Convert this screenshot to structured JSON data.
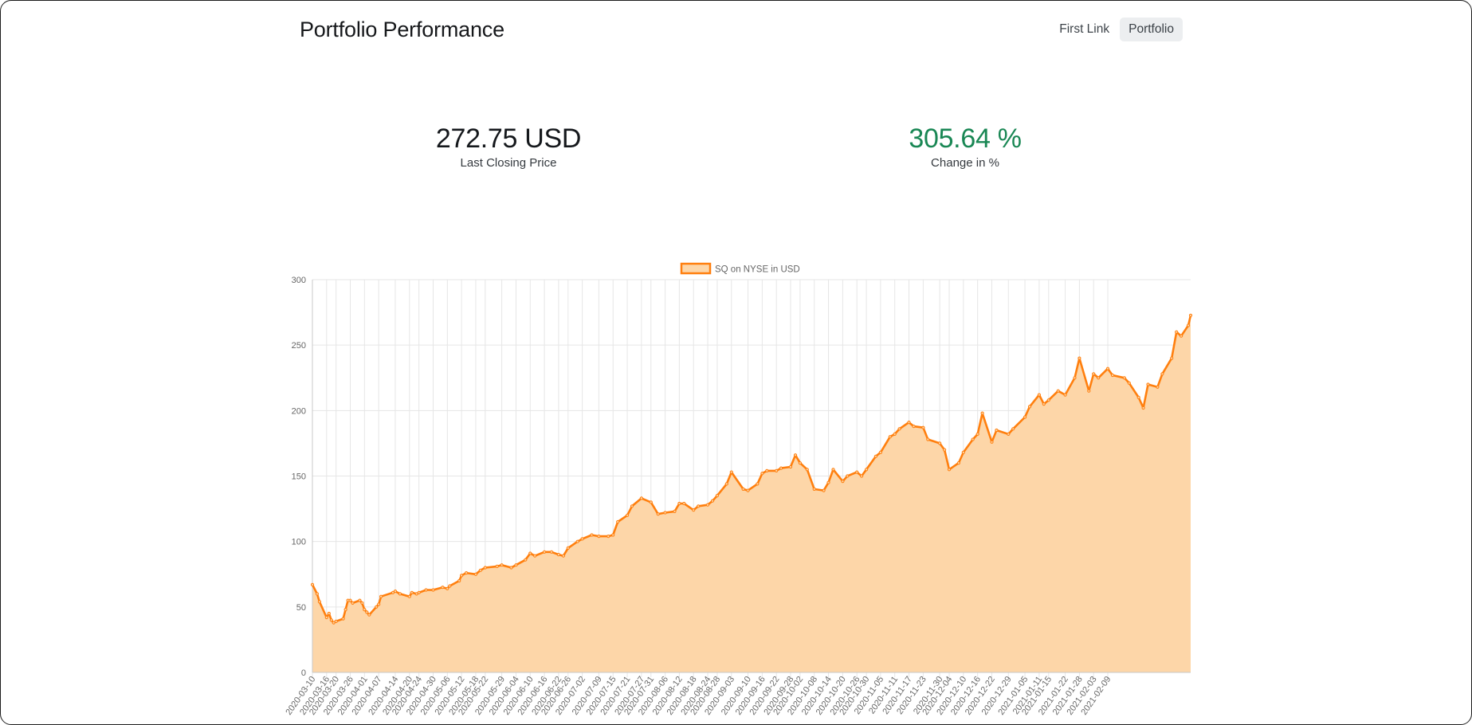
{
  "navbar": {
    "brand": "Portfolio Performance",
    "links": [
      {
        "label": "First Link",
        "active": false
      },
      {
        "label": "Portfolio",
        "active": true
      }
    ]
  },
  "stats": {
    "price": {
      "value": "272.75 USD",
      "label": "Last Closing Price"
    },
    "change": {
      "value": "305.64 %",
      "label": "Change in %",
      "color": "#198754"
    }
  },
  "chart_data": {
    "type": "area",
    "legend": "top",
    "grid": true,
    "series": [
      {
        "name": "SQ on NYSE in USD",
        "line_color": "#ff7f0e",
        "fill_color": "#fdd6a8"
      }
    ],
    "ylim": [
      0,
      300
    ],
    "yticks": [
      0,
      50,
      100,
      150,
      200,
      250,
      300
    ],
    "x_tick_labels": [
      "2020-03-10",
      "2020-03-16",
      "2020-03-20",
      "2020-03-26",
      "2020-04-01",
      "2020-04-07",
      "2020-04-14",
      "2020-04-20",
      "2020-04-24",
      "2020-04-30",
      "2020-05-06",
      "2020-05-12",
      "2020-05-18",
      "2020-05-22",
      "2020-05-29",
      "2020-06-04",
      "2020-06-10",
      "2020-06-16",
      "2020-06-22",
      "2020-06-26",
      "2020-07-02",
      "2020-07-09",
      "2020-07-15",
      "2020-07-21",
      "2020-07-27",
      "2020-07-31",
      "2020-08-06",
      "2020-08-12",
      "2020-08-18",
      "2020-08-24",
      "2020-08-28",
      "2020-09-03",
      "2020-09-10",
      "2020-09-16",
      "2020-09-22",
      "2020-09-28",
      "2020-10-02",
      "2020-10-08",
      "2020-10-14",
      "2020-10-20",
      "2020-10-26",
      "2020-10-30",
      "2020-11-05",
      "2020-11-11",
      "2020-11-17",
      "2020-11-23",
      "2020-11-30",
      "2020-12-04",
      "2020-12-10",
      "2020-12-16",
      "2020-12-22",
      "2020-12-29",
      "2021-01-05",
      "2021-01-11",
      "2021-01-15",
      "2021-01-22",
      "2021-01-28",
      "2021-02-03",
      "2021-02-09"
    ],
    "points": [
      [
        "2020-03-10",
        67
      ],
      [
        "2020-03-12",
        60
      ],
      [
        "2020-03-13",
        54
      ],
      [
        "2020-03-16",
        42
      ],
      [
        "2020-03-17",
        45
      ],
      [
        "2020-03-18",
        40
      ],
      [
        "2020-03-19",
        38
      ],
      [
        "2020-03-20",
        39
      ],
      [
        "2020-03-23",
        41
      ],
      [
        "2020-03-24",
        48
      ],
      [
        "2020-03-25",
        55
      ],
      [
        "2020-03-26",
        55
      ],
      [
        "2020-03-27",
        53
      ],
      [
        "2020-03-30",
        55
      ],
      [
        "2020-03-31",
        53
      ],
      [
        "2020-04-01",
        48
      ],
      [
        "2020-04-02",
        46
      ],
      [
        "2020-04-03",
        44
      ],
      [
        "2020-04-06",
        50
      ],
      [
        "2020-04-07",
        52
      ],
      [
        "2020-04-08",
        58
      ],
      [
        "2020-04-13",
        61
      ],
      [
        "2020-04-14",
        62
      ],
      [
        "2020-04-16",
        60
      ],
      [
        "2020-04-20",
        58
      ],
      [
        "2020-04-21",
        61
      ],
      [
        "2020-04-23",
        60
      ],
      [
        "2020-04-24",
        61
      ],
      [
        "2020-04-27",
        63
      ],
      [
        "2020-04-30",
        63
      ],
      [
        "2020-05-04",
        65
      ],
      [
        "2020-05-06",
        64
      ],
      [
        "2020-05-07",
        66
      ],
      [
        "2020-05-11",
        70
      ],
      [
        "2020-05-12",
        74
      ],
      [
        "2020-05-14",
        76
      ],
      [
        "2020-05-18",
        75
      ],
      [
        "2020-05-20",
        78
      ],
      [
        "2020-05-22",
        80
      ],
      [
        "2020-05-27",
        81
      ],
      [
        "2020-05-29",
        82
      ],
      [
        "2020-06-02",
        80
      ],
      [
        "2020-06-04",
        82
      ],
      [
        "2020-06-08",
        86
      ],
      [
        "2020-06-10",
        91
      ],
      [
        "2020-06-12",
        89
      ],
      [
        "2020-06-16",
        92
      ],
      [
        "2020-06-19",
        92
      ],
      [
        "2020-06-22",
        90
      ],
      [
        "2020-06-24",
        89
      ],
      [
        "2020-06-26",
        95
      ],
      [
        "2020-06-30",
        100
      ],
      [
        "2020-07-02",
        102
      ],
      [
        "2020-07-06",
        105
      ],
      [
        "2020-07-09",
        104
      ],
      [
        "2020-07-13",
        104
      ],
      [
        "2020-07-15",
        105
      ],
      [
        "2020-07-17",
        115
      ],
      [
        "2020-07-21",
        120
      ],
      [
        "2020-07-23",
        127
      ],
      [
        "2020-07-27",
        133
      ],
      [
        "2020-07-31",
        130
      ],
      [
        "2020-08-03",
        121
      ],
      [
        "2020-08-06",
        122
      ],
      [
        "2020-08-10",
        123
      ],
      [
        "2020-08-12",
        129
      ],
      [
        "2020-08-14",
        129
      ],
      [
        "2020-08-18",
        124
      ],
      [
        "2020-08-20",
        127
      ],
      [
        "2020-08-24",
        128
      ],
      [
        "2020-08-26",
        131
      ],
      [
        "2020-08-28",
        135
      ],
      [
        "2020-09-01",
        144
      ],
      [
        "2020-09-03",
        153
      ],
      [
        "2020-09-08",
        140
      ],
      [
        "2020-09-10",
        139
      ],
      [
        "2020-09-14",
        144
      ],
      [
        "2020-09-16",
        152
      ],
      [
        "2020-09-18",
        154
      ],
      [
        "2020-09-22",
        154
      ],
      [
        "2020-09-24",
        156
      ],
      [
        "2020-09-28",
        157
      ],
      [
        "2020-09-30",
        166
      ],
      [
        "2020-10-02",
        160
      ],
      [
        "2020-10-05",
        155
      ],
      [
        "2020-10-08",
        140
      ],
      [
        "2020-10-12",
        139
      ],
      [
        "2020-10-14",
        145
      ],
      [
        "2020-10-16",
        155
      ],
      [
        "2020-10-20",
        146
      ],
      [
        "2020-10-22",
        150
      ],
      [
        "2020-10-26",
        153
      ],
      [
        "2020-10-28",
        150
      ],
      [
        "2020-10-30",
        155
      ],
      [
        "2020-11-03",
        165
      ],
      [
        "2020-11-05",
        168
      ],
      [
        "2020-11-09",
        180
      ],
      [
        "2020-11-11",
        182
      ],
      [
        "2020-11-13",
        186
      ],
      [
        "2020-11-17",
        191
      ],
      [
        "2020-11-19",
        188
      ],
      [
        "2020-11-23",
        187
      ],
      [
        "2020-11-25",
        178
      ],
      [
        "2020-11-30",
        175
      ],
      [
        "2020-12-02",
        170
      ],
      [
        "2020-12-04",
        155
      ],
      [
        "2020-12-08",
        160
      ],
      [
        "2020-12-10",
        168
      ],
      [
        "2020-12-14",
        178
      ],
      [
        "2020-12-16",
        182
      ],
      [
        "2020-12-18",
        198
      ],
      [
        "2020-12-22",
        176
      ],
      [
        "2020-12-24",
        185
      ],
      [
        "2020-12-29",
        182
      ],
      [
        "2020-12-31",
        186
      ],
      [
        "2021-01-05",
        195
      ],
      [
        "2021-01-07",
        203
      ],
      [
        "2021-01-11",
        212
      ],
      [
        "2021-01-13",
        205
      ],
      [
        "2021-01-15",
        208
      ],
      [
        "2021-01-19",
        215
      ],
      [
        "2021-01-22",
        212
      ],
      [
        "2021-01-26",
        225
      ],
      [
        "2021-01-28",
        240
      ],
      [
        "2021-02-01",
        215
      ],
      [
        "2021-02-03",
        228
      ],
      [
        "2021-02-05",
        225
      ],
      [
        "2021-02-09",
        232
      ],
      [
        "2021-02-11",
        227
      ],
      [
        "2021-02-16",
        225
      ],
      [
        "2021-02-18",
        221
      ],
      [
        "2021-02-22",
        210
      ],
      [
        "2021-02-24",
        202
      ],
      [
        "2021-02-26",
        220
      ],
      [
        "2021-03-02",
        218
      ],
      [
        "2021-03-04",
        228
      ],
      [
        "2021-03-08",
        240
      ],
      [
        "2021-03-10",
        260
      ],
      [
        "2021-03-12",
        257
      ],
      [
        "2021-03-15",
        265
      ],
      [
        "2021-03-16",
        272.75
      ]
    ]
  }
}
